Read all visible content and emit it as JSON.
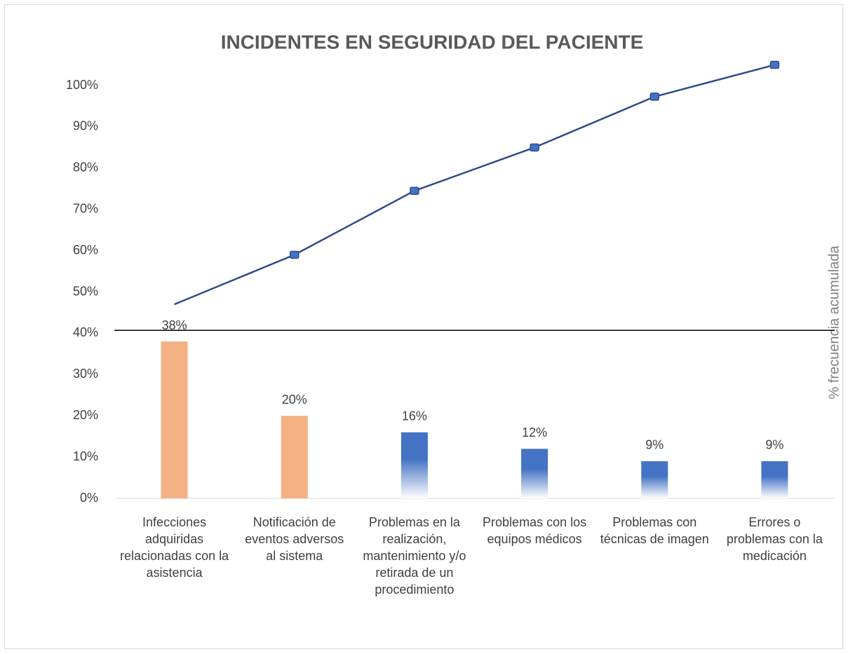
{
  "chart_data": {
    "type": "bar",
    "title": "INCIDENTES  EN  SEGURIDAD DEL  PACIENTE",
    "y2_label": "% frecuencia acumulada",
    "categories": [
      "Infecciones adquiridas relacionadas con la asistencia",
      "Notificación de eventos adversos al sistema",
      "Problemas en la realización, mantenimiento y/o retirada de un procedimiento",
      "Problemas con los equipos médicos",
      "Problemas con técnicas de imagen",
      "Errores o problemas con la medicación"
    ],
    "values": [
      38,
      20,
      16,
      12,
      9,
      9
    ],
    "value_labels": [
      "38%",
      "20%",
      "16%",
      "12%",
      "9%",
      "9%"
    ],
    "colors": [
      "#f4b183",
      "#f4b183",
      "#4472c4",
      "#4472c4",
      "#4472c4",
      "#4472c4"
    ],
    "line": {
      "name": "% frecuencia acumulada",
      "color": "#2f4b8a",
      "marker_color": "#4472c4",
      "values": [
        47,
        59,
        74.5,
        85,
        97.3,
        105
      ]
    },
    "hline": 40.7,
    "ylim": [
      0,
      100
    ],
    "yticks": [
      {
        "value": 0,
        "label": "0%"
      },
      {
        "value": 10,
        "label": "10%"
      },
      {
        "value": 20,
        "label": "20%"
      },
      {
        "value": 30,
        "label": "30%"
      },
      {
        "value": 40,
        "label": "40%"
      },
      {
        "value": 50,
        "label": "50%"
      },
      {
        "value": 60,
        "label": "60%"
      },
      {
        "value": 70,
        "label": "70%"
      },
      {
        "value": 80,
        "label": "80%"
      },
      {
        "value": 90,
        "label": "90%"
      },
      {
        "value": 100,
        "label": "100%"
      }
    ]
  }
}
